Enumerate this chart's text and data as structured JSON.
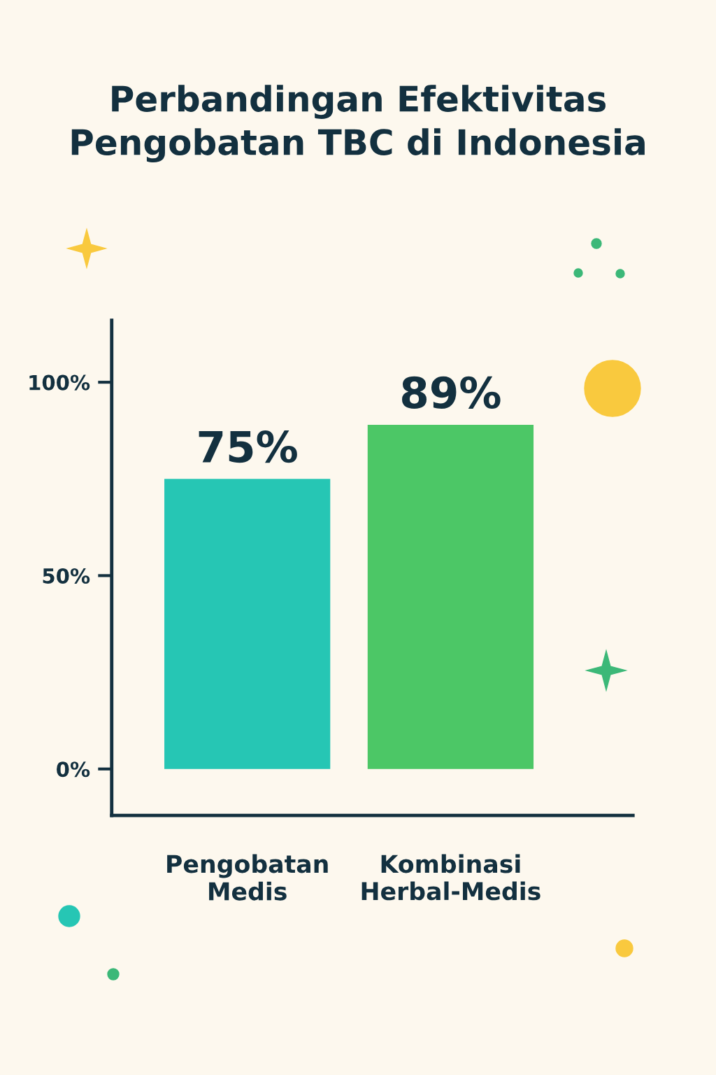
{
  "chart_data": {
    "type": "bar",
    "title": "Perbandingan Efektivitas\nPengobatan TBC di Indonesia",
    "categories": [
      "Pengobatan\nMedis",
      "Kombinasi\nHerbal-Medis"
    ],
    "values": [
      75,
      89
    ],
    "colors": [
      "#26c6b4",
      "#4cc766"
    ],
    "value_labels": [
      "75%",
      "89%"
    ],
    "ylim": [
      -12,
      116
    ],
    "yticks": [
      {
        "value": 0,
        "label": "0%"
      },
      {
        "value": 50,
        "label": "50%"
      },
      {
        "value": 100,
        "label": "100%"
      }
    ],
    "grid": false,
    "legend": false
  }
}
